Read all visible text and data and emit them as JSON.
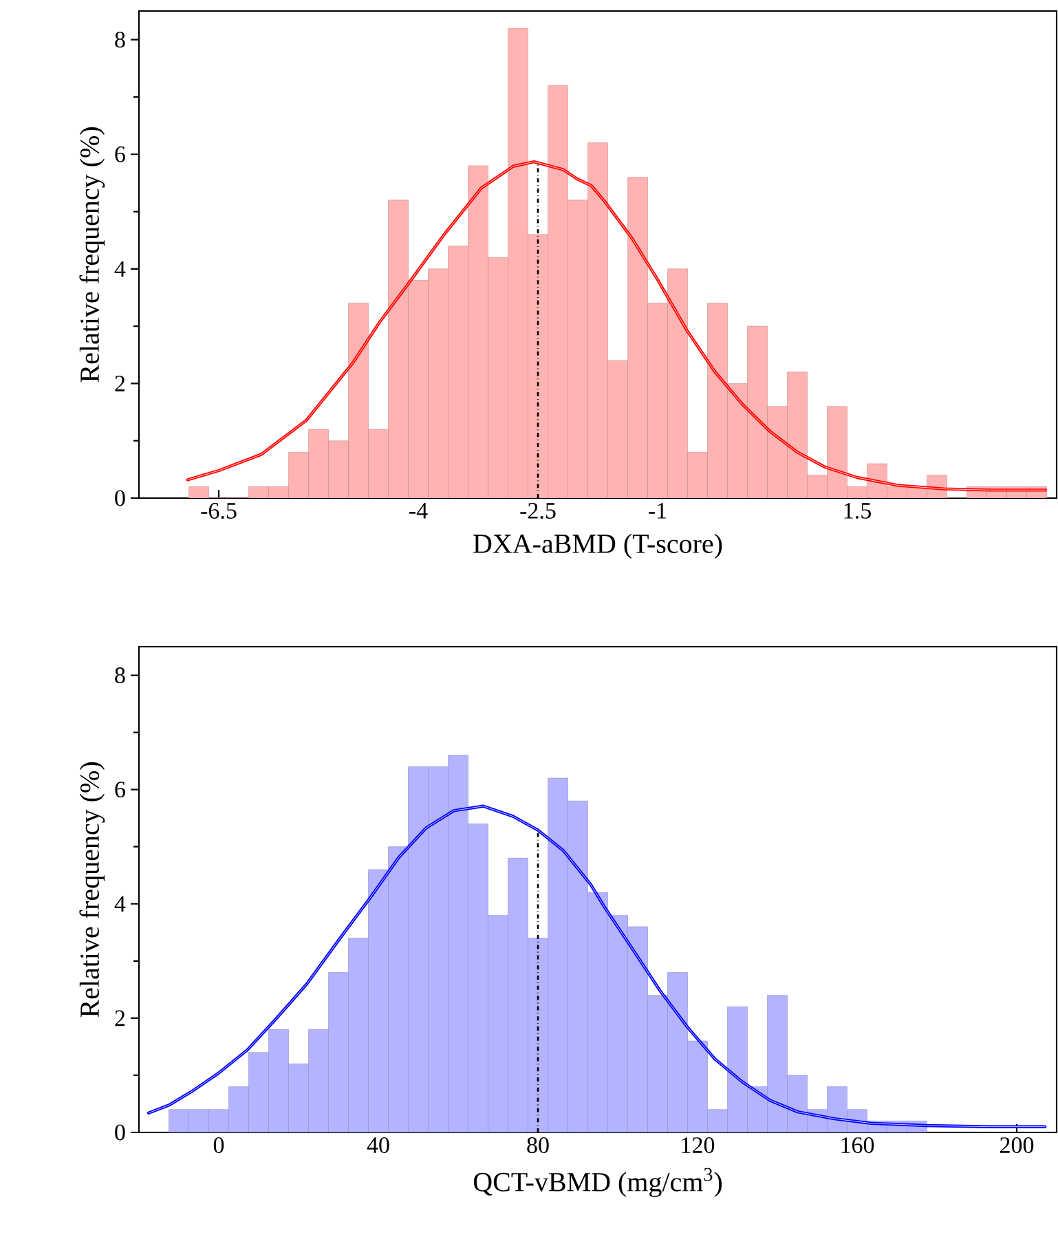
{
  "chart_data": [
    {
      "type": "histogram",
      "xlabel": "DXA-aBMD (T-score)",
      "ylabel": "Relative frequency (%)",
      "color": "#ffb3b3",
      "bins": [
        -6.875,
        -6.625,
        -6.375,
        -6.125,
        -5.875,
        -5.625,
        -5.375,
        -5.125,
        -4.875,
        -4.625,
        -4.375,
        -4.125,
        -3.875,
        -3.625,
        -3.375,
        -3.125,
        -2.875,
        -2.625,
        -2.375,
        -2.125,
        -1.875,
        -1.625,
        -1.375,
        -1.125,
        -0.875,
        -0.625,
        -0.375,
        -0.125,
        0.125,
        0.375,
        0.625,
        0.875,
        1.125,
        1.375,
        1.625,
        1.875,
        2.125,
        2.375,
        2.625,
        2.875,
        3.125,
        3.375,
        3.625,
        3.875
      ],
      "values": [
        0.2,
        0,
        0,
        0.2,
        0.2,
        0.8,
        1.2,
        1.0,
        3.4,
        1.2,
        5.2,
        3.8,
        4.0,
        4.4,
        5.8,
        4.2,
        8.2,
        4.6,
        7.2,
        5.2,
        6.2,
        2.4,
        5.6,
        3.4,
        4.0,
        0.8,
        3.4,
        2.0,
        3.0,
        1.6,
        2.2,
        0.4,
        1.6,
        0.2,
        0.6,
        0.2,
        0.2,
        0.4,
        0,
        0.2,
        0.2,
        0.2,
        0.2
      ],
      "series": [
        {
          "type": "line",
          "color": "#ff0000",
          "x": [
            -6.89,
            -6.5,
            -5.97,
            -5.4,
            -4.82,
            -4.48,
            -4.13,
            -3.67,
            -3.21,
            -2.81,
            -2.55,
            -2.18,
            -2.01,
            -1.83,
            -1.66,
            -1.32,
            -1.0,
            -0.63,
            -0.28,
            0.06,
            0.41,
            0.75,
            1.1,
            1.5,
            2.02,
            2.59,
            3.17,
            3.86
          ],
          "values": [
            0.32,
            0.48,
            0.76,
            1.36,
            2.36,
            3.08,
            3.73,
            4.61,
            5.41,
            5.79,
            5.87,
            5.73,
            5.57,
            5.45,
            5.17,
            4.53,
            3.81,
            2.92,
            2.2,
            1.64,
            1.16,
            0.8,
            0.54,
            0.36,
            0.22,
            0.16,
            0.14,
            0.14
          ]
        }
      ],
      "ref_lines": [
        {
          "axis": "x",
          "value": -2.5,
          "color": "#000000",
          "line_style": "dashdot"
        }
      ],
      "xlim": [
        -7.5,
        4.0
      ],
      "ylim": [
        0,
        8.5
      ],
      "xticks": [
        -6.5,
        -4,
        -2.5,
        -1,
        1.5
      ],
      "yticks": [
        0,
        2,
        4,
        6,
        8
      ]
    },
    {
      "type": "histogram",
      "xlabel": "QCT-vBMD (mg/cm$^{3}$)",
      "ylabel": "Relative frequency (%)",
      "color": "#b3b3ff",
      "bins": [
        -12.5,
        -7.5,
        -2.5,
        2.5,
        7.5,
        12.5,
        17.5,
        22.5,
        27.5,
        32.5,
        37.5,
        42.5,
        47.5,
        52.5,
        57.5,
        62.5,
        67.5,
        72.5,
        77.5,
        82.5,
        87.5,
        92.5,
        97.5,
        102.5,
        107.5,
        112.5,
        117.5,
        122.5,
        127.5,
        132.5,
        137.5,
        142.5,
        147.5,
        152.5,
        157.5,
        162.5,
        167.5,
        172.5,
        177.5
      ],
      "values": [
        0.4,
        0.4,
        0.4,
        0.8,
        1.4,
        1.8,
        1.2,
        1.8,
        2.8,
        3.4,
        4.6,
        5.0,
        6.4,
        6.4,
        6.6,
        5.4,
        3.8,
        4.8,
        3.4,
        6.2,
        5.8,
        4.2,
        3.8,
        3.6,
        2.4,
        2.8,
        1.6,
        0.4,
        2.2,
        0.8,
        2.4,
        1.0,
        0.4,
        0.8,
        0.4,
        0.2,
        0.2,
        0.2
      ],
      "series": [
        {
          "type": "line",
          "color": "#0000ff",
          "x": [
            -17.6,
            -12.4,
            -6.7,
            0,
            7.1,
            14.0,
            22.1,
            30.1,
            38.2,
            45.1,
            52.0,
            58.9,
            66.3,
            73.8,
            80,
            86.4,
            93.3,
            96.8,
            103.7,
            110.6,
            117.5,
            124.4,
            131.3,
            138.2,
            145.1,
            154.3,
            163.5,
            177.2,
            193.3,
            207.1
          ],
          "values": [
            0.34,
            0.48,
            0.72,
            1.04,
            1.44,
            1.96,
            2.6,
            3.37,
            4.13,
            4.81,
            5.33,
            5.63,
            5.71,
            5.53,
            5.29,
            4.93,
            4.33,
            3.93,
            3.21,
            2.48,
            1.84,
            1.28,
            0.88,
            0.56,
            0.36,
            0.24,
            0.16,
            0.12,
            0.1,
            0.1
          ]
        }
      ],
      "ref_lines": [
        {
          "axis": "x",
          "value": 80,
          "color": "#000000",
          "line_style": "dashdot"
        }
      ],
      "xlim": [
        -20,
        210
      ],
      "ylim": [
        0,
        8.5
      ],
      "xticks": [
        0,
        40,
        80,
        120,
        160,
        200
      ],
      "yticks": [
        0,
        2,
        4,
        6,
        8
      ]
    }
  ]
}
